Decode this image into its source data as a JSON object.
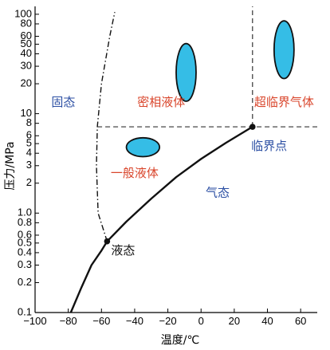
{
  "chart_data": {
    "type": "line",
    "xlabel": "温度/℃",
    "ylabel": "压力/MPa",
    "xlim": [
      -100,
      70
    ],
    "ylim": [
      0.1,
      120
    ],
    "y_scale": "log",
    "grid": false,
    "x_ticks": [
      -100,
      -80,
      -60,
      -40,
      -20,
      0,
      20,
      40,
      60
    ],
    "x_tick_labels": [
      "−100",
      "−80",
      "−60",
      "−40",
      "−20",
      "0",
      "20",
      "40",
      "60"
    ],
    "y_ticks": [
      0.1,
      0.2,
      0.3,
      0.4,
      0.5,
      0.6,
      0.8,
      1.0,
      2,
      3,
      4,
      5,
      6,
      8,
      10,
      20,
      30,
      40,
      50,
      60,
      80,
      100
    ],
    "y_tick_labels": [
      "0.1",
      "0.2",
      "0.3",
      "0.4",
      "0.5",
      "0.6",
      "0.8",
      "1.0",
      "2",
      "3",
      "4",
      "5",
      "6",
      "8",
      "10",
      "20",
      "30",
      "40",
      "50",
      "60",
      "80",
      "100"
    ],
    "series": [
      {
        "line_style": "solid",
        "points": [
          [
            -78.5,
            0.1
          ],
          [
            -72,
            0.18
          ],
          [
            -66,
            0.3
          ],
          [
            -60,
            0.42
          ],
          [
            -56.6,
            0.52
          ],
          [
            -45,
            0.82
          ],
          [
            -30,
            1.4
          ],
          [
            -15,
            2.3
          ],
          [
            0,
            3.5
          ],
          [
            15,
            5.1
          ],
          [
            31,
            7.38
          ]
        ]
      },
      {
        "line_style": "dash-dot",
        "points": [
          [
            -56.6,
            0.52
          ],
          [
            -62,
            1.0
          ],
          [
            -63,
            3.0
          ],
          [
            -62.5,
            7.38
          ],
          [
            -60,
            20
          ],
          [
            -55,
            60
          ],
          [
            -52,
            105
          ]
        ]
      }
    ],
    "reference_lines": [
      {
        "line_style": "dashed",
        "axis": "y",
        "value": 7.38,
        "from_x": -62.5,
        "to_x": 70
      },
      {
        "line_style": "dashed",
        "axis": "x",
        "value": 31,
        "from_y": 7.38,
        "to_y": 120
      }
    ],
    "key_points": [
      {
        "label": "液态",
        "x": -56.6,
        "y": 0.52,
        "label_x": -47,
        "label_y": 0.42
      },
      {
        "label": "临界点",
        "x": 31,
        "y": 7.38,
        "label_x": 41,
        "label_y": 4.7
      }
    ],
    "region_labels": [
      {
        "text": "固态",
        "x": -83,
        "y": 13,
        "color": "#2c4fa3"
      },
      {
        "text": "密相液体",
        "x": -24,
        "y": 13,
        "color": "#d9452b"
      },
      {
        "text": "超临界气体",
        "x": 50,
        "y": 13,
        "color": "#d9452b"
      },
      {
        "text": "一般液体",
        "x": -40,
        "y": 2.5,
        "color": "#d9452b"
      },
      {
        "text": "气态",
        "x": 10,
        "y": 1.6,
        "color": "#2c4fa3"
      }
    ],
    "markers": [
      {
        "shape": "ellipse",
        "cx": -9,
        "cy": 26,
        "rx_units": 6,
        "ry_decades": 0.29,
        "fill": "#35bde6",
        "stroke": "#111111"
      },
      {
        "shape": "ellipse",
        "cx": 50,
        "cy": 44,
        "rx_units": 6,
        "ry_decades": 0.29,
        "fill": "#35bde6",
        "stroke": "#111111"
      },
      {
        "shape": "ellipse",
        "cx": -35,
        "cy": 4.6,
        "rx_units": 10,
        "ry_decades": 0.095,
        "fill": "#35bde6",
        "stroke": "#111111"
      }
    ],
    "colors": {
      "curve": "#111111",
      "axis": "#000000"
    }
  }
}
